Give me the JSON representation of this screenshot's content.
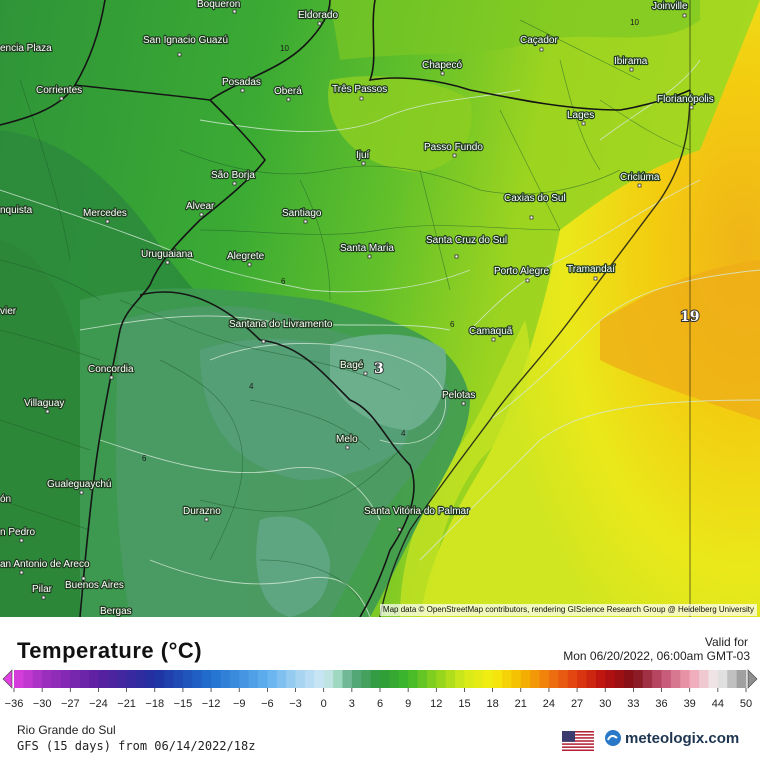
{
  "legend": {
    "title": "Temperature (°C)",
    "valid_label": "Valid for",
    "valid_time": "Mon 06/20/2022, 06:00am GMT-03",
    "unit": "°C",
    "range": [
      -36,
      50
    ],
    "ticks": [
      "-36",
      "-30",
      "-27",
      "-24",
      "-21",
      "-18",
      "-15",
      "-12",
      "-9",
      "-6",
      "-3",
      "0",
      "3",
      "6",
      "9",
      "12",
      "15",
      "18",
      "21",
      "24",
      "27",
      "30",
      "33",
      "36",
      "39",
      "44",
      "50"
    ],
    "color_stops": [
      {
        "t": -36,
        "c": "#e040e0"
      },
      {
        "t": -30,
        "c": "#a030c0"
      },
      {
        "t": -24,
        "c": "#5a20a0"
      },
      {
        "t": -18,
        "c": "#2030a0"
      },
      {
        "t": -12,
        "c": "#2070d0"
      },
      {
        "t": -6,
        "c": "#60b0f0"
      },
      {
        "t": -3,
        "c": "#a0d0f0"
      },
      {
        "t": 0,
        "c": "#cfe8f5"
      },
      {
        "t": 1.5,
        "c": "#9fd8c0"
      },
      {
        "t": 3,
        "c": "#5aa882"
      },
      {
        "t": 6,
        "c": "#2e9a3a"
      },
      {
        "t": 9,
        "c": "#3cb82a"
      },
      {
        "t": 12,
        "c": "#8cd21e"
      },
      {
        "t": 15,
        "c": "#d4ea1a"
      },
      {
        "t": 18,
        "c": "#f5ee10"
      },
      {
        "t": 21,
        "c": "#f5b800"
      },
      {
        "t": 24,
        "c": "#f07810"
      },
      {
        "t": 27,
        "c": "#e03c10"
      },
      {
        "t": 30,
        "c": "#b81010"
      },
      {
        "t": 33,
        "c": "#801018"
      },
      {
        "t": 36,
        "c": "#c05070"
      },
      {
        "t": 39,
        "c": "#f0a0b0"
      },
      {
        "t": 44,
        "c": "#f0f0f0"
      },
      {
        "t": 50,
        "c": "#909090"
      }
    ]
  },
  "footer": {
    "region": "Rio Grande do Sul",
    "model": "GFS (15 days) from 06/14/2022/18z",
    "brand": "meteologix.com"
  },
  "map": {
    "attribution": "Map data © OpenStreetMap contributors, rendering GIScience Research Group @ Heidelberg University",
    "cities": [
      "Boqueron",
      "Eldorado",
      "Joinville",
      "San Ignacio Guazú",
      "Caçador",
      "encia Plaza",
      "Posadas",
      "Oberá",
      "Três Passos",
      "Chapecó",
      "Ibirama",
      "Corrientes",
      "Florianópolis",
      "Lages",
      "Ijuí",
      "Passo Fundo",
      "São Borja",
      "Criciúma",
      "Alvear",
      "Caxias do Sul",
      "nquista",
      "Mercedes",
      "Santiago",
      "Santa Maria",
      "Santa Cruz do Sul",
      "Uruguaiana",
      "Alegrete",
      "Porto Alegre",
      "Tramandaí",
      "vier",
      "Santana do Livramento",
      "Camaquã",
      "Bagé",
      "Concordia",
      "Villaguay",
      "Pelotas",
      "Melo",
      "Gualeguaychú",
      "Santa Vitória do Palmar",
      "Durazno",
      "ón",
      "n Pedro",
      "an Antonio de Areco",
      "Pilar",
      "Buenos Aires",
      "Bergas"
    ],
    "isolines": [
      "10",
      "10",
      "6",
      "4",
      "6",
      "6",
      "4",
      "10",
      "8"
    ],
    "value_labels": [
      "3",
      "19"
    ]
  }
}
